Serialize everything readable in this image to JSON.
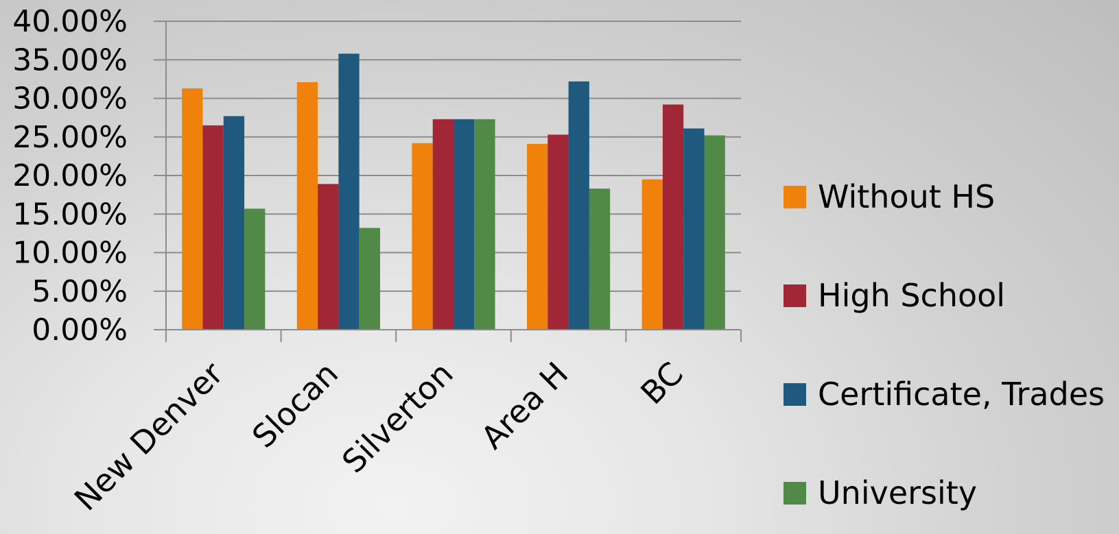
{
  "chart_data": {
    "type": "bar",
    "categories": [
      "New Denver",
      "Slocan",
      "Silverton",
      "Area H",
      "BC"
    ],
    "series": [
      {
        "name": "Without HS",
        "color": "#F0820C",
        "values": [
          31.3,
          32.1,
          24.2,
          24.1,
          19.5
        ]
      },
      {
        "name": "High School",
        "color": "#A12736",
        "values": [
          26.5,
          18.9,
          27.3,
          25.3,
          29.2
        ]
      },
      {
        "name": "Certificate, Trades",
        "color": "#1F5A7E",
        "values": [
          27.7,
          35.8,
          27.3,
          32.2,
          26.1
        ]
      },
      {
        "name": "University",
        "color": "#508A46",
        "values": [
          15.7,
          13.2,
          27.3,
          18.3,
          25.2
        ]
      }
    ],
    "y_ticks": [
      "0.00%",
      "5.00%",
      "10.00%",
      "15.00%",
      "20.00%",
      "25.00%",
      "30.00%",
      "35.00%",
      "40.00%"
    ],
    "ylim": [
      0,
      40
    ],
    "grid": true,
    "legend_position": "right",
    "title": "",
    "xlabel": "",
    "ylabel": ""
  }
}
